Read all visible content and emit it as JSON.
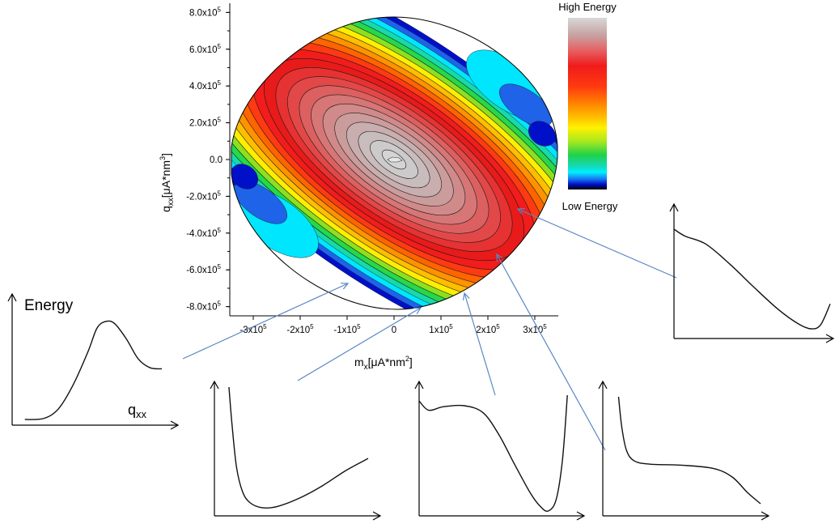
{
  "chart_data": [
    {
      "type": "heatmap",
      "description_kind": "contour",
      "xlabel": {
        "base": "m",
        "sub": "x",
        "units_prefix": "[μA*nm",
        "units_sup": "2",
        "units_suffix": "]"
      },
      "ylabel": {
        "base": "q",
        "sub": "xx",
        "units_prefix": "[μA*nm",
        "units_sup": "3",
        "units_suffix": "]"
      },
      "xlim": [
        -350000,
        350000
      ],
      "ylim": [
        -850000,
        850000
      ],
      "x_ticks": [
        {
          "value": -300000,
          "mant": "-3x10",
          "exp": "5"
        },
        {
          "value": -200000,
          "mant": "-2x10",
          "exp": "5"
        },
        {
          "value": -100000,
          "mant": "-1x10",
          "exp": "5"
        },
        {
          "value": 0,
          "mant": "0",
          "exp": ""
        },
        {
          "value": 100000,
          "mant": "1x10",
          "exp": "5"
        },
        {
          "value": 200000,
          "mant": "2x10",
          "exp": "5"
        },
        {
          "value": 300000,
          "mant": "3x10",
          "exp": "5"
        }
      ],
      "y_ticks": [
        {
          "value": 800000,
          "mant": "8.0x10",
          "exp": "5"
        },
        {
          "value": 600000,
          "mant": "6.0x10",
          "exp": "5"
        },
        {
          "value": 400000,
          "mant": "4.0x10",
          "exp": "5"
        },
        {
          "value": 200000,
          "mant": "2.0x10",
          "exp": "5"
        },
        {
          "value": 0,
          "mant": "0.0",
          "exp": ""
        },
        {
          "value": -200000,
          "mant": "-2.0x10",
          "exp": "5"
        },
        {
          "value": -400000,
          "mant": "-4.0x10",
          "exp": "5"
        },
        {
          "value": -600000,
          "mant": "-6.0x10",
          "exp": "5"
        },
        {
          "value": -800000,
          "mant": "-8.0x10",
          "exp": "5"
        }
      ],
      "colorbar": {
        "high_label": "High Energy",
        "low_label": "Low Energy"
      },
      "maximum_at": [
        0,
        0
      ],
      "grid": false
    },
    {
      "type": "line",
      "role": "energy profile (left)",
      "y_axis_label": "Energy",
      "x_axis_label": {
        "base": "q",
        "sub": "xx"
      },
      "points": [
        [
          0.07,
          0.0
        ],
        [
          0.2,
          0.01
        ],
        [
          0.3,
          0.1
        ],
        [
          0.4,
          0.32
        ],
        [
          0.5,
          0.62
        ],
        [
          0.56,
          0.83
        ],
        [
          0.62,
          0.89
        ],
        [
          0.68,
          0.87
        ],
        [
          0.76,
          0.73
        ],
        [
          0.84,
          0.55
        ],
        [
          0.92,
          0.47
        ],
        [
          1.0,
          0.46
        ]
      ]
    },
    {
      "type": "line",
      "role": "energy profile (bottom 1)",
      "points": [
        [
          0.08,
          1.0
        ],
        [
          0.1,
          0.7
        ],
        [
          0.13,
          0.35
        ],
        [
          0.17,
          0.15
        ],
        [
          0.22,
          0.06
        ],
        [
          0.3,
          0.02
        ],
        [
          0.4,
          0.03
        ],
        [
          0.55,
          0.1
        ],
        [
          0.7,
          0.2
        ],
        [
          0.85,
          0.32
        ],
        [
          1.0,
          0.42
        ]
      ]
    },
    {
      "type": "line",
      "role": "energy profile (bottom 2)",
      "points": [
        [
          0.0,
          0.95
        ],
        [
          0.06,
          0.87
        ],
        [
          0.15,
          0.9
        ],
        [
          0.28,
          0.91
        ],
        [
          0.4,
          0.85
        ],
        [
          0.5,
          0.66
        ],
        [
          0.6,
          0.4
        ],
        [
          0.7,
          0.15
        ],
        [
          0.76,
          0.04
        ],
        [
          0.81,
          0.0
        ],
        [
          0.86,
          0.1
        ],
        [
          0.9,
          0.45
        ],
        [
          0.93,
          1.0
        ]
      ]
    },
    {
      "type": "line",
      "role": "energy profile (bottom 3)",
      "points": [
        [
          0.1,
          1.0
        ],
        [
          0.12,
          0.72
        ],
        [
          0.15,
          0.5
        ],
        [
          0.2,
          0.4
        ],
        [
          0.3,
          0.37
        ],
        [
          0.5,
          0.36
        ],
        [
          0.7,
          0.33
        ],
        [
          0.82,
          0.25
        ],
        [
          0.92,
          0.1
        ],
        [
          1.0,
          0.0
        ]
      ]
    },
    {
      "type": "line",
      "role": "energy profile (right)",
      "points": [
        [
          0.0,
          1.0
        ],
        [
          0.07,
          0.93
        ],
        [
          0.2,
          0.85
        ],
        [
          0.35,
          0.65
        ],
        [
          0.5,
          0.42
        ],
        [
          0.65,
          0.2
        ],
        [
          0.78,
          0.05
        ],
        [
          0.86,
          0.0
        ],
        [
          0.92,
          0.04
        ],
        [
          0.98,
          0.25
        ]
      ]
    }
  ]
}
